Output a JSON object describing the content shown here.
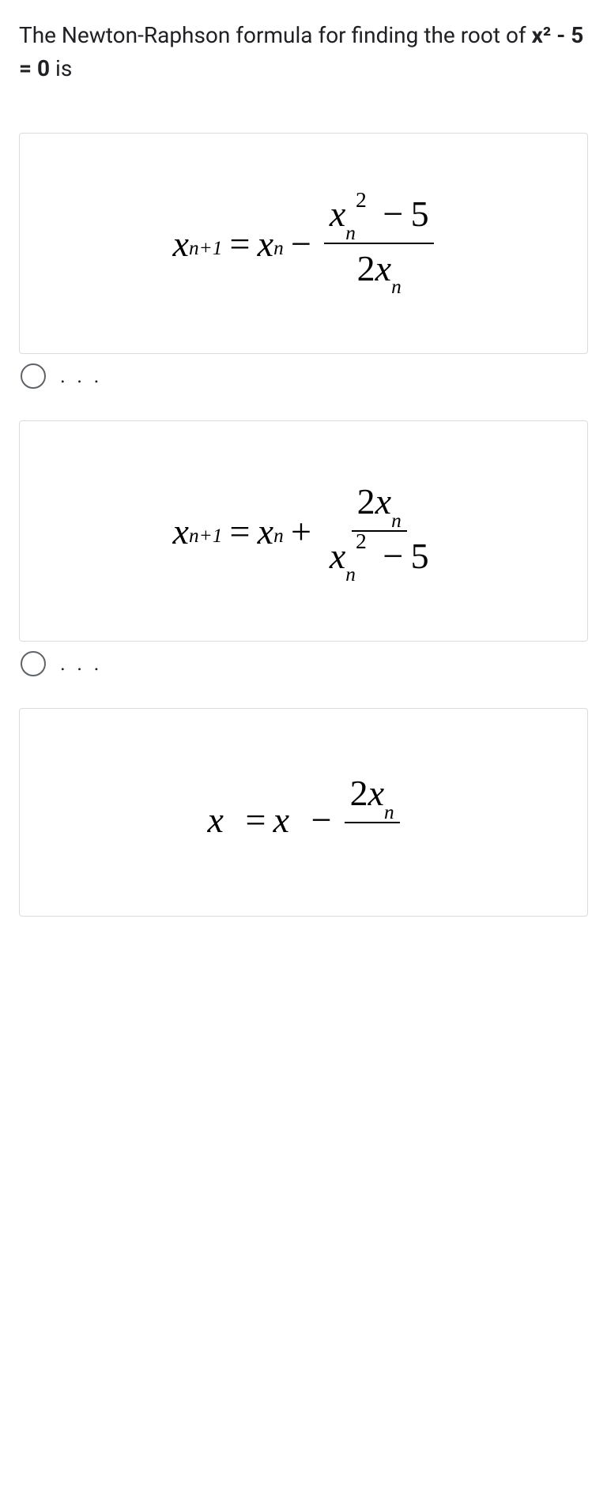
{
  "question": {
    "prefix": "The Newton-Raphson formula for finding the root of ",
    "equation": "x² - 5 = 0",
    "suffix": " is"
  },
  "options": [
    {
      "label": ". . .",
      "formula": {
        "lhs_var": "x",
        "lhs_sub": "n+1",
        "eq": "=",
        "rhs_var": "x",
        "rhs_sub": "n",
        "operator": "−",
        "num_var": "x",
        "num_sub": "n",
        "num_sup": "2",
        "num_op": "−",
        "num_const": "5",
        "den_coeff": "2",
        "den_var": "x",
        "den_sub": "n"
      }
    },
    {
      "label": ". . .",
      "formula": {
        "lhs_var": "x",
        "lhs_sub": "n+1",
        "eq": "=",
        "rhs_var": "x",
        "rhs_sub": "n",
        "operator": "+",
        "num_coeff": "2",
        "num_var": "x",
        "num_sub": "n",
        "den_var": "x",
        "den_sub": "n",
        "den_sup": "2",
        "den_op": "−",
        "den_const": "5"
      }
    },
    {
      "label": ". . .",
      "formula": {
        "lhs_var": "x",
        "eq": "=",
        "rhs_var": "x",
        "operator": "−",
        "num_coeff": "2",
        "num_var": "x",
        "num_sub": "n"
      }
    }
  ],
  "styling": {
    "background_color": "#ffffff",
    "border_color": "#dadce0",
    "text_color": "#202124",
    "radio_border_color": "#5f6368",
    "formula_color": "#000000",
    "question_fontsize": 28,
    "formula_fontsize": 46,
    "radio_label_fontsize": 26
  }
}
